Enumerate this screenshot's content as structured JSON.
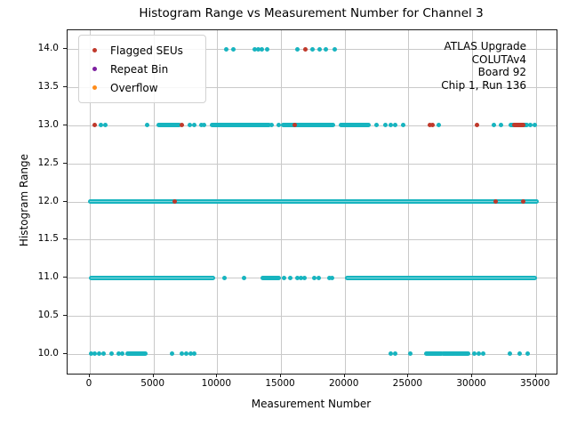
{
  "title": "Histogram Range vs Measurement Number for Channel 3",
  "annotation": {
    "lines": [
      "ATLAS Upgrade",
      "COLUTAv4",
      "Board 92",
      "Chip 1, Run 136"
    ]
  },
  "legend": {
    "items": [
      {
        "label": "Flagged SEUs",
        "color": "#c0392b"
      },
      {
        "label": "Repeat Bin",
        "color": "#7d1fa0"
      },
      {
        "label": "Overflow",
        "color": "#ff8c1a"
      }
    ]
  },
  "chart_data": {
    "type": "scatter",
    "title": "Histogram Range vs Measurement Number for Channel 3",
    "xlabel": "Measurement Number",
    "ylabel": "Histogram Range",
    "xlim": [
      -1745,
      36625
    ],
    "ylim": [
      9.74,
      14.25
    ],
    "x_tick_values": [
      0,
      5000,
      10000,
      15000,
      20000,
      25000,
      30000,
      35000
    ],
    "x_tick_labels": [
      "0",
      "5000",
      "10000",
      "15000",
      "20000",
      "25000",
      "30000",
      "35000"
    ],
    "y_tick_values": [
      10.0,
      10.5,
      11.0,
      11.5,
      12.0,
      12.5,
      13.0,
      13.5,
      14.0
    ],
    "y_tick_labels": [
      "10.0",
      "10.5",
      "11.0",
      "11.5",
      "12.0",
      "12.5",
      "13.0",
      "13.5",
      "14.0"
    ],
    "grid": true,
    "legend_position": "upper left",
    "colors": {
      "normal": "#17b4bf",
      "flagged": "#c0392b",
      "repeat_bin": "#7d1fa0",
      "overflow": "#ff8c1a",
      "gridline": "#c9c9c9"
    },
    "normal_bands": [
      {
        "y": 14,
        "segments": [],
        "points": [
          10740,
          11300,
          12910,
          13200,
          13470,
          13950,
          16260,
          17440,
          18000,
          18490,
          19190
        ]
      },
      {
        "y": 13,
        "segments": [
          [
            5440,
            6980
          ],
          [
            9560,
            14090
          ],
          [
            15140,
            19050
          ],
          [
            19740,
            21840
          ],
          [
            33000,
            34300
          ]
        ],
        "points": [
          840,
          1190,
          4470,
          7880,
          8230,
          8720,
          8930,
          14300,
          14790,
          22470,
          23230,
          23580,
          23930,
          24560,
          27350,
          31740,
          32230,
          34600,
          34900
        ]
      },
      {
        "y": 12,
        "segments": [
          [
            0,
            35050
          ]
        ],
        "points": []
      },
      {
        "y": 11,
        "segments": [
          [
            80,
            9630
          ],
          [
            13600,
            14790
          ],
          [
            20230,
            34890
          ]
        ],
        "points": [
          10600,
          12070,
          15210,
          15700,
          16260,
          16600,
          16880,
          17580,
          17930,
          18770,
          18980
        ]
      },
      {
        "y": 10,
        "segments": [
          [
            2930,
            4330
          ],
          [
            26370,
            27560
          ],
          [
            27700,
            28610
          ],
          [
            28740,
            29650
          ]
        ],
        "points": [
          100,
          350,
          700,
          1050,
          1740,
          2300,
          2580,
          6420,
          7190,
          7600,
          7900,
          8230,
          23580,
          23930,
          25120,
          30140,
          30490,
          30840,
          32930,
          33700,
          34330
        ]
      }
    ],
    "flagged_points": [
      {
        "x": 16890,
        "y": 14
      },
      {
        "x": 350,
        "y": 13
      },
      {
        "x": 7190,
        "y": 13
      },
      {
        "x": 16100,
        "y": 13
      },
      {
        "x": 26650,
        "y": 13
      },
      {
        "x": 26860,
        "y": 13
      },
      {
        "x": 30350,
        "y": 13
      },
      {
        "x": 6630,
        "y": 12
      },
      {
        "x": 31880,
        "y": 12
      },
      {
        "x": 33980,
        "y": 12
      }
    ],
    "flagged_segments": [
      {
        "y": 13,
        "x0": 33300,
        "x1": 34000
      }
    ],
    "repeat_bin_points": [],
    "overflow_points": []
  }
}
